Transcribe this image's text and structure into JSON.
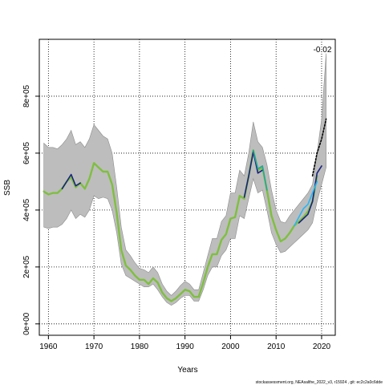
{
  "chart_data": {
    "type": "line",
    "xlabel": "Years",
    "ylabel": "SSB",
    "xlim": [
      1958,
      2023
    ],
    "ylim": [
      -40000,
      1000000
    ],
    "x_ticks": [
      1960,
      1970,
      1980,
      1990,
      2000,
      2010,
      2020
    ],
    "y_ticks": [
      0,
      200000,
      400000,
      600000,
      800000
    ],
    "y_tick_labels": [
      "0e+00",
      "2e+05",
      "4e+05",
      "6e+05",
      "8e+05"
    ],
    "grid": true,
    "annotation": "-0.02",
    "footer": "stockassessment.org, NEAsalthe_2022_v3, r15924 , git: ec2c2a0c6dde",
    "colors": {
      "band": "#bdbdbd",
      "band_edge": "#8c8c8c",
      "green": "#7fbf3f",
      "dark_green": "#2e7d32",
      "blue": "#1a237e",
      "teal": "#26a69a",
      "cyan": "#29b6f6",
      "black": "#000000"
    },
    "band": {
      "x": [
        1959,
        1960,
        1961,
        1962,
        1963,
        1964,
        1965,
        1966,
        1967,
        1968,
        1969,
        1970,
        1971,
        1972,
        1973,
        1974,
        1975,
        1976,
        1977,
        1978,
        1979,
        1980,
        1981,
        1982,
        1983,
        1984,
        1985,
        1986,
        1987,
        1988,
        1989,
        1990,
        1991,
        1992,
        1993,
        1994,
        1995,
        1996,
        1997,
        1998,
        1999,
        2000,
        2001,
        2002,
        2003,
        2004,
        2005,
        2006,
        2007,
        2008,
        2009,
        2010,
        2011,
        2012,
        2013,
        2014,
        2015,
        2016,
        2017,
        2018,
        2019,
        2020,
        2021
      ],
      "upper": [
        635000,
        620000,
        620000,
        615000,
        630000,
        650000,
        680000,
        630000,
        640000,
        620000,
        650000,
        700000,
        680000,
        660000,
        650000,
        600000,
        480000,
        340000,
        260000,
        240000,
        215000,
        195000,
        190000,
        180000,
        200000,
        180000,
        140000,
        115000,
        100000,
        115000,
        135000,
        150000,
        140000,
        120000,
        120000,
        180000,
        240000,
        300000,
        300000,
        360000,
        380000,
        460000,
        460000,
        540000,
        520000,
        600000,
        710000,
        640000,
        620000,
        560000,
        470000,
        400000,
        360000,
        355000,
        380000,
        400000,
        420000,
        440000,
        460000,
        490000,
        600000,
        720000,
        950000
      ],
      "lower": [
        340000,
        335000,
        340000,
        340000,
        350000,
        370000,
        400000,
        370000,
        385000,
        375000,
        400000,
        450000,
        440000,
        445000,
        440000,
        400000,
        320000,
        210000,
        170000,
        160000,
        150000,
        140000,
        130000,
        130000,
        140000,
        120000,
        95000,
        75000,
        65000,
        75000,
        90000,
        100000,
        100000,
        80000,
        80000,
        120000,
        170000,
        200000,
        200000,
        240000,
        260000,
        300000,
        300000,
        380000,
        370000,
        440000,
        510000,
        460000,
        470000,
        400000,
        320000,
        280000,
        250000,
        255000,
        270000,
        285000,
        300000,
        315000,
        330000,
        355000,
        430000,
        490000,
        550000
      ]
    },
    "series": [
      {
        "name": "",
        "color_key": "green",
        "x": [
          1959,
          1960,
          1961,
          1962,
          1963,
          1964,
          1965,
          1966,
          1967,
          1968,
          1969,
          1970,
          1971,
          1972,
          1973,
          1974,
          1975,
          1976,
          1977,
          1978,
          1979,
          1980,
          1981,
          1982,
          1983,
          1984,
          1985,
          1986,
          1987,
          1988,
          1989,
          1990,
          1991,
          1992,
          1993,
          1994,
          1995,
          1996,
          1997,
          1998,
          1999,
          2000,
          2001,
          2002,
          2003,
          2004,
          2005,
          2006,
          2007,
          2008,
          2009,
          2010,
          2011,
          2012,
          2013,
          2014,
          2015,
          2016,
          2017,
          2018,
          2019
        ],
        "y": [
          465000,
          455000,
          460000,
          460000,
          475000,
          500000,
          515000,
          480000,
          495000,
          475000,
          510000,
          565000,
          550000,
          535000,
          535000,
          490000,
          390000,
          260000,
          205000,
          190000,
          170000,
          155000,
          155000,
          140000,
          160000,
          145000,
          110000,
          90000,
          80000,
          90000,
          105000,
          120000,
          115000,
          95000,
          95000,
          145000,
          200000,
          245000,
          245000,
          295000,
          315000,
          370000,
          375000,
          450000,
          440000,
          520000,
          610000,
          540000,
          550000,
          470000,
          380000,
          330000,
          290000,
          300000,
          320000,
          345000,
          360000,
          375000,
          395000,
          430000,
          520000
        ]
      },
      {
        "name": "",
        "color_key": "blue",
        "x": [
          1963,
          1964,
          1965,
          1966,
          1967,
          2003,
          2004,
          2005,
          2006,
          2007,
          2015,
          2016,
          2017,
          2018,
          2019,
          2020
        ],
        "y": [
          475000,
          500000,
          525000,
          485000,
          495000,
          445000,
          520000,
          605000,
          530000,
          540000,
          355000,
          370000,
          385000,
          430000,
          530000,
          555000
        ],
        "segments": [
          [
            0,
            5
          ],
          [
            5,
            10
          ],
          [
            10,
            16
          ]
        ]
      },
      {
        "name": "",
        "color_key": "cyan",
        "x": [
          2014,
          2015,
          2016,
          2017,
          2018,
          2019
        ],
        "y": [
          345000,
          375000,
          405000,
          420000,
          460000,
          500000
        ]
      },
      {
        "name": "",
        "color_key": "teal",
        "x": [
          2005,
          2006,
          2007,
          2008
        ],
        "y": [
          610000,
          545000,
          555000,
          470000
        ]
      },
      {
        "name": "",
        "color_key": "black",
        "dashed": true,
        "x": [
          2018,
          2019,
          2020,
          2021
        ],
        "y": [
          520000,
          600000,
          650000,
          720000
        ]
      }
    ]
  }
}
